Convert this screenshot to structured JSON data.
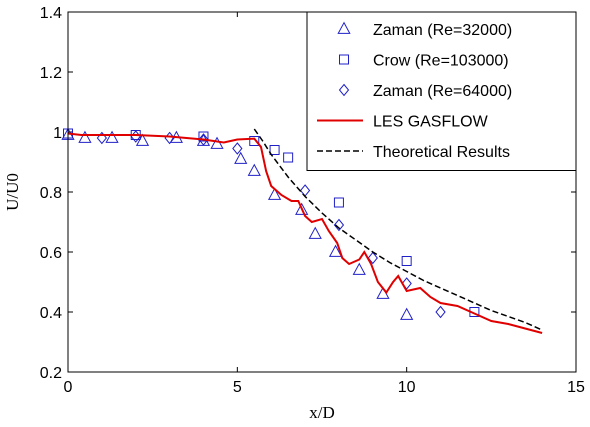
{
  "chart_data": {
    "type": "scatter",
    "xlabel": "x/D",
    "ylabel": "U/U0",
    "xlim": [
      0,
      15
    ],
    "ylim": [
      0.2,
      1.4
    ],
    "xticks": [
      "0",
      "5",
      "10",
      "15"
    ],
    "yticks": [
      "0.2",
      "0.4",
      "0.6",
      "0.8",
      "1",
      "1.2",
      "1.4"
    ],
    "grid": false,
    "legend_position": "top-right",
    "series": [
      {
        "name": "Zaman (Re=32000)",
        "kind": "markers",
        "marker": "triangle",
        "color": "#2020c8",
        "points": [
          [
            0.0,
            0.99
          ],
          [
            0.5,
            0.98
          ],
          [
            1.3,
            0.98
          ],
          [
            2.2,
            0.97
          ],
          [
            3.2,
            0.98
          ],
          [
            4.0,
            0.97
          ],
          [
            4.4,
            0.96
          ],
          [
            5.1,
            0.91
          ],
          [
            5.5,
            0.87
          ],
          [
            6.1,
            0.79
          ],
          [
            6.9,
            0.74
          ],
          [
            7.3,
            0.66
          ],
          [
            7.9,
            0.6
          ],
          [
            8.6,
            0.54
          ],
          [
            9.3,
            0.46
          ],
          [
            10.0,
            0.39
          ]
        ]
      },
      {
        "name": "Crow (Re=103000)",
        "kind": "markers",
        "marker": "square",
        "color": "#2020c8",
        "points": [
          [
            0.0,
            0.995
          ],
          [
            2.0,
            0.99
          ],
          [
            4.0,
            0.985
          ],
          [
            5.5,
            0.97
          ],
          [
            6.1,
            0.94
          ],
          [
            6.5,
            0.915
          ],
          [
            8.0,
            0.765
          ],
          [
            10.0,
            0.57
          ],
          [
            12.0,
            0.4
          ]
        ]
      },
      {
        "name": "Zaman (Re=64000)",
        "kind": "markers",
        "marker": "diamond",
        "color": "#2020c8",
        "points": [
          [
            1.0,
            0.98
          ],
          [
            2.0,
            0.985
          ],
          [
            3.0,
            0.98
          ],
          [
            4.0,
            0.975
          ],
          [
            5.0,
            0.945
          ],
          [
            7.0,
            0.805
          ],
          [
            8.0,
            0.69
          ],
          [
            9.0,
            0.58
          ],
          [
            10.0,
            0.495
          ],
          [
            11.0,
            0.4
          ]
        ]
      },
      {
        "name": "LES GASFLOW",
        "kind": "line",
        "style": "solid",
        "color": "#e00000",
        "points": [
          [
            0.0,
            0.995
          ],
          [
            0.4,
            0.99
          ],
          [
            1.0,
            0.99
          ],
          [
            2.0,
            0.99
          ],
          [
            3.0,
            0.985
          ],
          [
            4.0,
            0.975
          ],
          [
            4.6,
            0.965
          ],
          [
            5.0,
            0.975
          ],
          [
            5.5,
            0.978
          ],
          [
            5.7,
            0.95
          ],
          [
            5.85,
            0.87
          ],
          [
            6.0,
            0.82
          ],
          [
            6.3,
            0.79
          ],
          [
            6.6,
            0.77
          ],
          [
            6.8,
            0.77
          ],
          [
            7.0,
            0.72
          ],
          [
            7.2,
            0.7
          ],
          [
            7.5,
            0.71
          ],
          [
            7.7,
            0.67
          ],
          [
            7.95,
            0.63
          ],
          [
            8.1,
            0.58
          ],
          [
            8.3,
            0.56
          ],
          [
            8.6,
            0.575
          ],
          [
            8.75,
            0.6
          ],
          [
            8.95,
            0.56
          ],
          [
            9.15,
            0.5
          ],
          [
            9.4,
            0.465
          ],
          [
            9.6,
            0.5
          ],
          [
            9.75,
            0.52
          ],
          [
            9.9,
            0.49
          ],
          [
            10.0,
            0.47
          ],
          [
            10.4,
            0.48
          ],
          [
            10.7,
            0.45
          ],
          [
            11.0,
            0.43
          ],
          [
            11.5,
            0.42
          ],
          [
            12.0,
            0.395
          ],
          [
            12.5,
            0.37
          ],
          [
            13.0,
            0.36
          ],
          [
            13.5,
            0.345
          ],
          [
            14.0,
            0.33
          ]
        ]
      },
      {
        "name": "Theoretical Results",
        "kind": "line",
        "style": "dashed",
        "color": "#000000",
        "points": [
          [
            5.5,
            1.01
          ],
          [
            5.75,
            0.97
          ],
          [
            6.0,
            0.925
          ],
          [
            6.5,
            0.85
          ],
          [
            7.0,
            0.785
          ],
          [
            7.5,
            0.73
          ],
          [
            8.0,
            0.68
          ],
          [
            8.5,
            0.64
          ],
          [
            9.0,
            0.6
          ],
          [
            9.5,
            0.565
          ],
          [
            10.0,
            0.535
          ],
          [
            10.5,
            0.505
          ],
          [
            11.0,
            0.48
          ],
          [
            11.5,
            0.455
          ],
          [
            12.0,
            0.43
          ],
          [
            12.5,
            0.405
          ],
          [
            13.0,
            0.385
          ],
          [
            13.5,
            0.365
          ],
          [
            14.0,
            0.34
          ]
        ]
      }
    ]
  }
}
